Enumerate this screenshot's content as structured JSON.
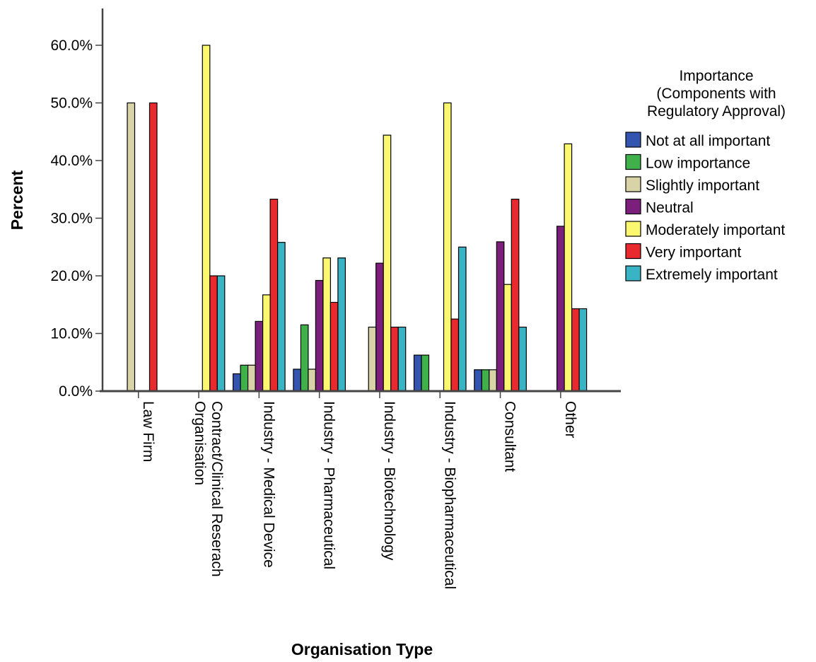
{
  "chart_data": {
    "type": "bar",
    "title": "",
    "xlabel": "Organisation Type",
    "ylabel": "Percent",
    "ylim": [
      0,
      65
    ],
    "yticks": [
      0,
      10,
      20,
      30,
      40,
      50,
      60
    ],
    "ytick_labels": [
      "0.0%",
      "10.0%",
      "20.0%",
      "30.0%",
      "40.0%",
      "50.0%",
      "60.0%"
    ],
    "grid": false,
    "legend_position": "right",
    "legend_title": [
      "Importance",
      "(Components with",
      "Regulatory Approval)"
    ],
    "categories": [
      [
        "Law Firm"
      ],
      [
        "Contract/Clinical Reserach",
        "Organisation"
      ],
      [
        "Industry - Medical Device"
      ],
      [
        "Industry - Pharmaceutical"
      ],
      [
        "Industry - Biotechnology"
      ],
      [
        "Industry - Biopharmaceutical"
      ],
      [
        "Consultant"
      ],
      [
        "Other"
      ]
    ],
    "series": [
      {
        "name": "Not at all important",
        "color": "#3355b0",
        "values": [
          0,
          0,
          3.0,
          3.8,
          0,
          6.25,
          3.7,
          0
        ]
      },
      {
        "name": "Low importance",
        "color": "#3fb04a",
        "values": [
          0,
          0,
          4.5,
          11.5,
          0,
          6.25,
          3.7,
          0
        ]
      },
      {
        "name": "Slightly important",
        "color": "#d9d3a8",
        "values": [
          50.0,
          0,
          4.5,
          3.8,
          11.1,
          0,
          3.7,
          0
        ]
      },
      {
        "name": "Neutral",
        "color": "#7c1f7c",
        "values": [
          0,
          0,
          12.1,
          19.2,
          22.2,
          0,
          25.9,
          28.6
        ]
      },
      {
        "name": "Moderately important",
        "color": "#fbf870",
        "values": [
          0,
          60.0,
          16.7,
          23.1,
          44.4,
          50.0,
          18.5,
          42.9
        ]
      },
      {
        "name": "Very important",
        "color": "#e8292e",
        "values": [
          50.0,
          20.0,
          33.3,
          15.4,
          11.1,
          12.5,
          33.3,
          14.3
        ]
      },
      {
        "name": "Extremely important",
        "color": "#38b4c4",
        "values": [
          0,
          20.0,
          25.8,
          23.1,
          11.1,
          25.0,
          11.1,
          14.3
        ]
      }
    ]
  }
}
